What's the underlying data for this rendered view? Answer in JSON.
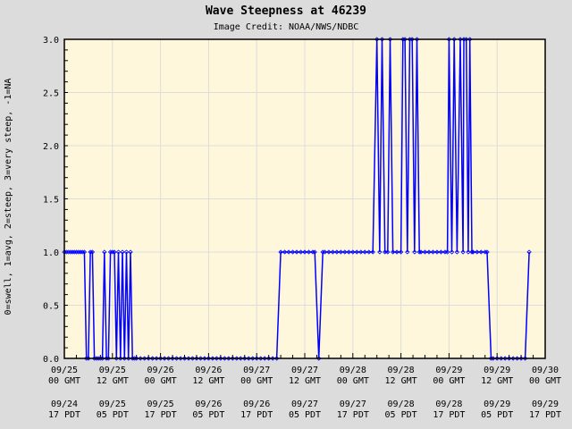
{
  "title": "Wave Steepness at 46239",
  "credit": "Image Credit: NOAA/NWS/NDBC",
  "colors": {
    "background": "#dcdcdc",
    "plot_bg": "#fff7dc",
    "grid": "#dcdcdc",
    "series": "#0000ff",
    "axis": "#000000"
  },
  "chart_data": {
    "type": "line",
    "title": "Wave Steepness at 46239",
    "subtitle": "Image Credit: NOAA/NWS/NDBC",
    "xlabel": "",
    "ylabel": "0=swell, 1=avg, 2=steep, 3=very steep, -1=NA",
    "ylim": [
      0,
      3.0
    ],
    "yticks": [
      "0.0",
      "0.5",
      "1.0",
      "1.5",
      "2.0",
      "2.5",
      "3.0"
    ],
    "grid": true,
    "legend": "none",
    "x_unit": "hours since 09/25 00 GMT",
    "xlim": [
      0,
      120
    ],
    "xticks_gmt": [
      {
        "line1": "09/25",
        "line2": "00 GMT"
      },
      {
        "line1": "09/25",
        "line2": "12 GMT"
      },
      {
        "line1": "09/26",
        "line2": "00 GMT"
      },
      {
        "line1": "09/26",
        "line2": "12 GMT"
      },
      {
        "line1": "09/27",
        "line2": "00 GMT"
      },
      {
        "line1": "09/27",
        "line2": "12 GMT"
      },
      {
        "line1": "09/28",
        "line2": "00 GMT"
      },
      {
        "line1": "09/28",
        "line2": "12 GMT"
      },
      {
        "line1": "09/29",
        "line2": "00 GMT"
      },
      {
        "line1": "09/29",
        "line2": "12 GMT"
      },
      {
        "line1": "09/30",
        "line2": "00 GMT"
      }
    ],
    "xticks_pdt": [
      {
        "line1": "09/24",
        "line2": "17 PDT"
      },
      {
        "line1": "09/25",
        "line2": "05 PDT"
      },
      {
        "line1": "09/25",
        "line2": "17 PDT"
      },
      {
        "line1": "09/26",
        "line2": "05 PDT"
      },
      {
        "line1": "09/26",
        "line2": "17 PDT"
      },
      {
        "line1": "09/27",
        "line2": "05 PDT"
      },
      {
        "line1": "09/27",
        "line2": "17 PDT"
      },
      {
        "line1": "09/28",
        "line2": "05 PDT"
      },
      {
        "line1": "09/28",
        "line2": "17 PDT"
      },
      {
        "line1": "09/29",
        "line2": "05 PDT"
      },
      {
        "line1": "09/29",
        "line2": "17 PDT"
      }
    ],
    "series": [
      {
        "name": "Wave Steepness",
        "points": [
          [
            0,
            1
          ],
          [
            0.5,
            1
          ],
          [
            1,
            1
          ],
          [
            1.5,
            1
          ],
          [
            2,
            1
          ],
          [
            2.5,
            1
          ],
          [
            3,
            1
          ],
          [
            3.5,
            1
          ],
          [
            4,
            1
          ],
          [
            4.5,
            1
          ],
          [
            5,
            1
          ],
          [
            5.5,
            0
          ],
          [
            6,
            0
          ],
          [
            6.5,
            1
          ],
          [
            7,
            1
          ],
          [
            7.5,
            0
          ],
          [
            8,
            0
          ],
          [
            8.5,
            0
          ],
          [
            9,
            0
          ],
          [
            9.5,
            0
          ],
          [
            10,
            1
          ],
          [
            10.5,
            0
          ],
          [
            11,
            0
          ],
          [
            11.5,
            1
          ],
          [
            12,
            1
          ],
          [
            12.5,
            1
          ],
          [
            13,
            0
          ],
          [
            13.5,
            1
          ],
          [
            14,
            0
          ],
          [
            14.5,
            1
          ],
          [
            15,
            0
          ],
          [
            15.5,
            1
          ],
          [
            16,
            0
          ],
          [
            16.5,
            1
          ],
          [
            17,
            0
          ],
          [
            17.5,
            0
          ],
          [
            18,
            0
          ],
          [
            19,
            0
          ],
          [
            20,
            0
          ],
          [
            21,
            0
          ],
          [
            22,
            0
          ],
          [
            23,
            0
          ],
          [
            24,
            0
          ],
          [
            25,
            0
          ],
          [
            26,
            0
          ],
          [
            27,
            0
          ],
          [
            28,
            0
          ],
          [
            29,
            0
          ],
          [
            30,
            0
          ],
          [
            31,
            0
          ],
          [
            32,
            0
          ],
          [
            33,
            0
          ],
          [
            34,
            0
          ],
          [
            35,
            0
          ],
          [
            36,
            0
          ],
          [
            37,
            0
          ],
          [
            38,
            0
          ],
          [
            39,
            0
          ],
          [
            40,
            0
          ],
          [
            41,
            0
          ],
          [
            42,
            0
          ],
          [
            43,
            0
          ],
          [
            44,
            0
          ],
          [
            45,
            0
          ],
          [
            46,
            0
          ],
          [
            47,
            0
          ],
          [
            48,
            0
          ],
          [
            49,
            0
          ],
          [
            50,
            0
          ],
          [
            51,
            0
          ],
          [
            52,
            0
          ],
          [
            53,
            0
          ],
          [
            54,
            1
          ],
          [
            55,
            1
          ],
          [
            56,
            1
          ],
          [
            57,
            1
          ],
          [
            58,
            1
          ],
          [
            59,
            1
          ],
          [
            60,
            1
          ],
          [
            61,
            1
          ],
          [
            62,
            1
          ],
          [
            62.5,
            1
          ],
          [
            63.5,
            0
          ],
          [
            64.5,
            1
          ],
          [
            65,
            1
          ],
          [
            66,
            1
          ],
          [
            67,
            1
          ],
          [
            68,
            1
          ],
          [
            69,
            1
          ],
          [
            70,
            1
          ],
          [
            71,
            1
          ],
          [
            72,
            1
          ],
          [
            73,
            1
          ],
          [
            74,
            1
          ],
          [
            75,
            1
          ],
          [
            76,
            1
          ],
          [
            77,
            1
          ],
          [
            78,
            3
          ],
          [
            78.7,
            1
          ],
          [
            79.3,
            3
          ],
          [
            80,
            1
          ],
          [
            80.7,
            1
          ],
          [
            81.3,
            3
          ],
          [
            82,
            1
          ],
          [
            83,
            1
          ],
          [
            84,
            1
          ],
          [
            84.5,
            3
          ],
          [
            85,
            3
          ],
          [
            85.6,
            1
          ],
          [
            86.2,
            3
          ],
          [
            86.8,
            3
          ],
          [
            87.4,
            1
          ],
          [
            88,
            3
          ],
          [
            88.6,
            1
          ],
          [
            89,
            1
          ],
          [
            90,
            1
          ],
          [
            91,
            1
          ],
          [
            92,
            1
          ],
          [
            93,
            1
          ],
          [
            94,
            1
          ],
          [
            95,
            1
          ],
          [
            95.6,
            1
          ],
          [
            96,
            3
          ],
          [
            96.7,
            1
          ],
          [
            97.3,
            3
          ],
          [
            98,
            1
          ],
          [
            98.8,
            3
          ],
          [
            99.5,
            1
          ],
          [
            99.7,
            3
          ],
          [
            100.3,
            3
          ],
          [
            100.8,
            1
          ],
          [
            101.2,
            3
          ],
          [
            101.7,
            1
          ],
          [
            102,
            1
          ],
          [
            103,
            1
          ],
          [
            104,
            1
          ],
          [
            105,
            1
          ],
          [
            105.5,
            1
          ],
          [
            106.5,
            0
          ],
          [
            107,
            0
          ],
          [
            108,
            0
          ],
          [
            109,
            0
          ],
          [
            110,
            0
          ],
          [
            111,
            0
          ],
          [
            112,
            0
          ],
          [
            113,
            0
          ],
          [
            114,
            0
          ],
          [
            115,
            0
          ],
          [
            116,
            1
          ]
        ]
      }
    ]
  }
}
